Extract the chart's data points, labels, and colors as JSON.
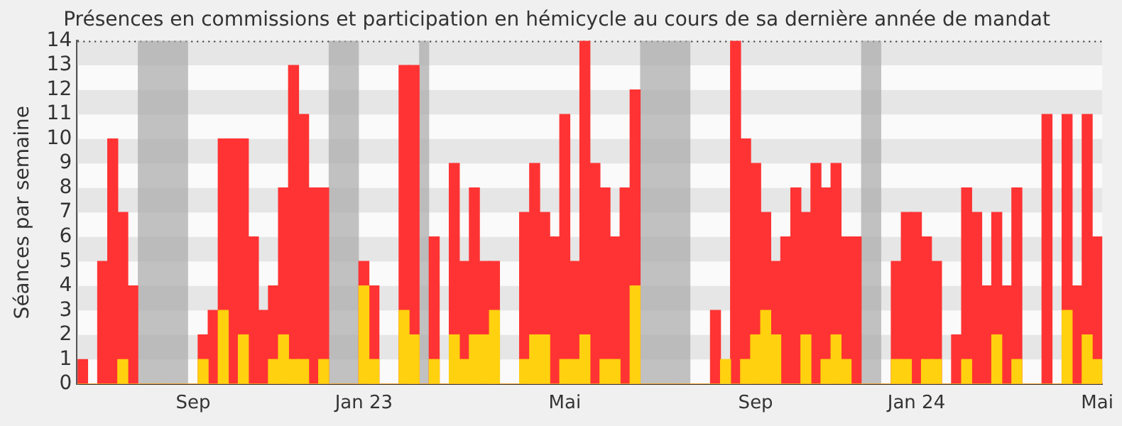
{
  "chart_data": {
    "type": "bar",
    "title": "Présences en commissions et participation en hémicycle au cours de sa dernière année de mandat",
    "ylabel": "Séances par semaine",
    "categories": [
      null,
      null,
      null,
      null,
      null,
      null,
      null,
      null,
      null,
      null,
      null,
      "Sep",
      null,
      null,
      null,
      null,
      null,
      null,
      null,
      null,
      null,
      null,
      null,
      null,
      null,
      null,
      null,
      null,
      "Jan 23",
      null,
      null,
      null,
      null,
      null,
      null,
      null,
      null,
      null,
      null,
      null,
      null,
      null,
      null,
      null,
      null,
      null,
      null,
      null,
      "Mai",
      null,
      null,
      null,
      null,
      null,
      null,
      null,
      null,
      null,
      null,
      null,
      null,
      null,
      null,
      null,
      null,
      null,
      null,
      "Sep",
      null,
      null,
      null,
      null,
      null,
      null,
      null,
      null,
      null,
      null,
      null,
      null,
      null,
      null,
      null,
      "Jan 24",
      null,
      null,
      null,
      null,
      null,
      null,
      null,
      null,
      null,
      null,
      null,
      null,
      null,
      null,
      null,
      null,
      null,
      "Mai"
    ],
    "series": [
      {
        "color": "#ff3333",
        "values": [
          1,
          0,
          5,
          10,
          7,
          4,
          0,
          0,
          0,
          0,
          0,
          0,
          2,
          3,
          10,
          10,
          10,
          6,
          3,
          4,
          8,
          13,
          11,
          8,
          8,
          0,
          0,
          0,
          5,
          4,
          0,
          0,
          13,
          13,
          0,
          6,
          0,
          9,
          5,
          8,
          5,
          5,
          0,
          0,
          7,
          9,
          7,
          6,
          11,
          5,
          14,
          9,
          8,
          6,
          8,
          12,
          0,
          0,
          0,
          0,
          0,
          0,
          0,
          3,
          null,
          14,
          10,
          9,
          7,
          5,
          6,
          8,
          7,
          9,
          8,
          9,
          6,
          6,
          0,
          0,
          0,
          5,
          7,
          7,
          6,
          5,
          0,
          2,
          8,
          7,
          4,
          7,
          4,
          8,
          0,
          0,
          11,
          0,
          11,
          4,
          11,
          6
        ]
      },
      {
        "color": "#ffd10f",
        "values": [
          0,
          0,
          0,
          0,
          1,
          0,
          0,
          0,
          0,
          0,
          0,
          0,
          1,
          0,
          3,
          0,
          2,
          0,
          0,
          1,
          2,
          1,
          1,
          0,
          1,
          0,
          0,
          0,
          4,
          1,
          0,
          0,
          3,
          2,
          0,
          1,
          0,
          2,
          1,
          2,
          2,
          3,
          0,
          0,
          1,
          2,
          2,
          0,
          1,
          1,
          2,
          0,
          1,
          1,
          0,
          4,
          0,
          0,
          0,
          0,
          0,
          0,
          0,
          0,
          1,
          0,
          1,
          2,
          3,
          2,
          0,
          0,
          2,
          0,
          1,
          2,
          1,
          0,
          0,
          0,
          0,
          1,
          1,
          0,
          1,
          1,
          0,
          0,
          1,
          0,
          0,
          2,
          0,
          1,
          0,
          0,
          0,
          0,
          3,
          0,
          2,
          1
        ]
      }
    ],
    "ylim": [
      0,
      14
    ],
    "yticks": [
      0,
      1,
      2,
      3,
      4,
      5,
      6,
      7,
      8,
      9,
      10,
      11,
      12,
      13,
      14
    ],
    "legend": false
  }
}
